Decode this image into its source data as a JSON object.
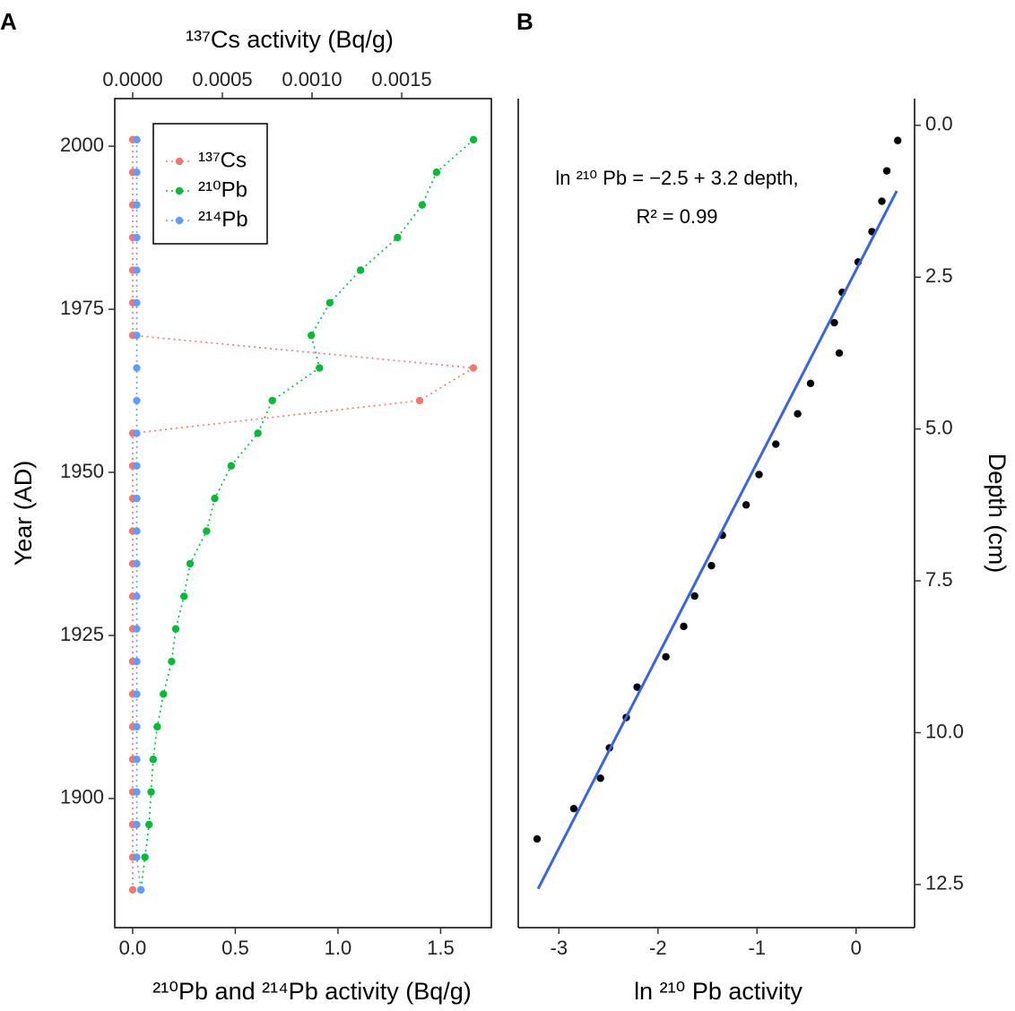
{
  "chart_data": [
    {
      "type": "line",
      "panel_label": "A",
      "ylabel": "Year (AD)",
      "xlabel": "²¹⁰Pb and ²¹⁴Pb activity (Bq/g)",
      "x2label": "¹³⁷Cs activity (Bq/g)",
      "y": [
        2001,
        1996,
        1991,
        1986,
        1981,
        1976,
        1971,
        1966,
        1961,
        1956,
        1951,
        1946,
        1941,
        1936,
        1931,
        1926,
        1921,
        1916,
        1911,
        1906,
        1901,
        1896,
        1891,
        1886
      ],
      "series": [
        {
          "name": "¹³⁷Cs",
          "color": "#F8766D",
          "axis": "x2",
          "values": [
            0,
            0,
            0,
            0,
            0,
            0,
            0,
            0.0019,
            0.0016,
            0,
            0,
            0,
            0,
            0,
            0,
            0,
            0,
            0,
            0,
            0,
            0,
            0,
            0,
            0
          ]
        },
        {
          "name": "²¹⁰Pb",
          "color": "#00BA38",
          "values": [
            1.66,
            1.48,
            1.41,
            1.29,
            1.11,
            0.96,
            0.87,
            0.91,
            0.68,
            0.61,
            0.48,
            0.4,
            0.36,
            0.28,
            0.25,
            0.21,
            0.19,
            0.15,
            0.12,
            0.1,
            0.09,
            0.08,
            0.06,
            0.04
          ]
        },
        {
          "name": "²¹⁴Pb",
          "color": "#619CFF",
          "values": [
            0.02,
            0.02,
            0.02,
            0.02,
            0.02,
            0.02,
            0.02,
            0.02,
            0.02,
            0.02,
            0.02,
            0.02,
            0.02,
            0.02,
            0.02,
            0.02,
            0.02,
            0.02,
            0.02,
            0.02,
            0.02,
            0.02,
            0.02,
            0.04
          ]
        }
      ],
      "ylim": [
        1880.2,
        2007.3
      ],
      "yticks": [
        1900,
        1925,
        1950,
        1975,
        2000
      ],
      "xlim": [
        -0.087,
        1.747
      ],
      "xticks": [
        {
          "value": 0,
          "label": "0.0"
        },
        0.5,
        {
          "value": 1,
          "label": "1.0"
        },
        1.5
      ],
      "x2lim": [
        -0.0001,
        0.002
      ],
      "x2ticks": [
        {
          "value": 0,
          "label": "0.0000"
        },
        {
          "value": 0.0005,
          "label": "0.0005"
        },
        {
          "value": 0.001,
          "label": "0.0010"
        },
        {
          "value": 0.0015,
          "label": "0.0015"
        }
      ],
      "legend": "top-left",
      "line_style": "dotted"
    },
    {
      "type": "scatter",
      "panel_label": "B",
      "xlabel": "ln ²¹⁰ Pb activity",
      "ylabel": "Depth (cm)",
      "annotations": [
        "ln ²¹⁰ Pb = −2.5 + 3.2 depth,",
        "R² = 0.99"
      ],
      "x": [
        0.42,
        0.31,
        0.26,
        0.16,
        0.02,
        -0.14,
        -0.22,
        -0.17,
        -0.46,
        -0.59,
        -0.81,
        -0.98,
        -1.11,
        -1.35,
        -1.46,
        -1.63,
        -1.74,
        -1.92,
        -2.21,
        -2.32,
        -2.49,
        -2.58,
        -2.85,
        -3.22
      ],
      "y": [
        0.25,
        0.75,
        1.25,
        1.75,
        2.25,
        2.75,
        3.25,
        3.75,
        4.25,
        4.75,
        5.25,
        5.75,
        6.25,
        6.75,
        7.25,
        7.75,
        8.25,
        8.75,
        9.25,
        9.75,
        10.25,
        10.75,
        11.25,
        11.75
      ],
      "color": "#000000",
      "fit": {
        "x": [
          -3.21,
          0.41
        ],
        "y": [
          12.57,
          1.08
        ],
        "color": "#3B63E5"
      },
      "xlim": [
        -3.41,
        0.59
      ],
      "xticks": [
        -3,
        -2,
        -1,
        0
      ],
      "ylim": [
        -0.44,
        13.21
      ],
      "y_reversed": true,
      "y_axis_side": "right",
      "yticks": [
        {
          "value": 0,
          "label": "0.0"
        },
        2.5,
        {
          "value": 5,
          "label": "5.0"
        },
        7.5,
        {
          "value": 10,
          "label": "10.0"
        },
        12.5
      ]
    }
  ]
}
